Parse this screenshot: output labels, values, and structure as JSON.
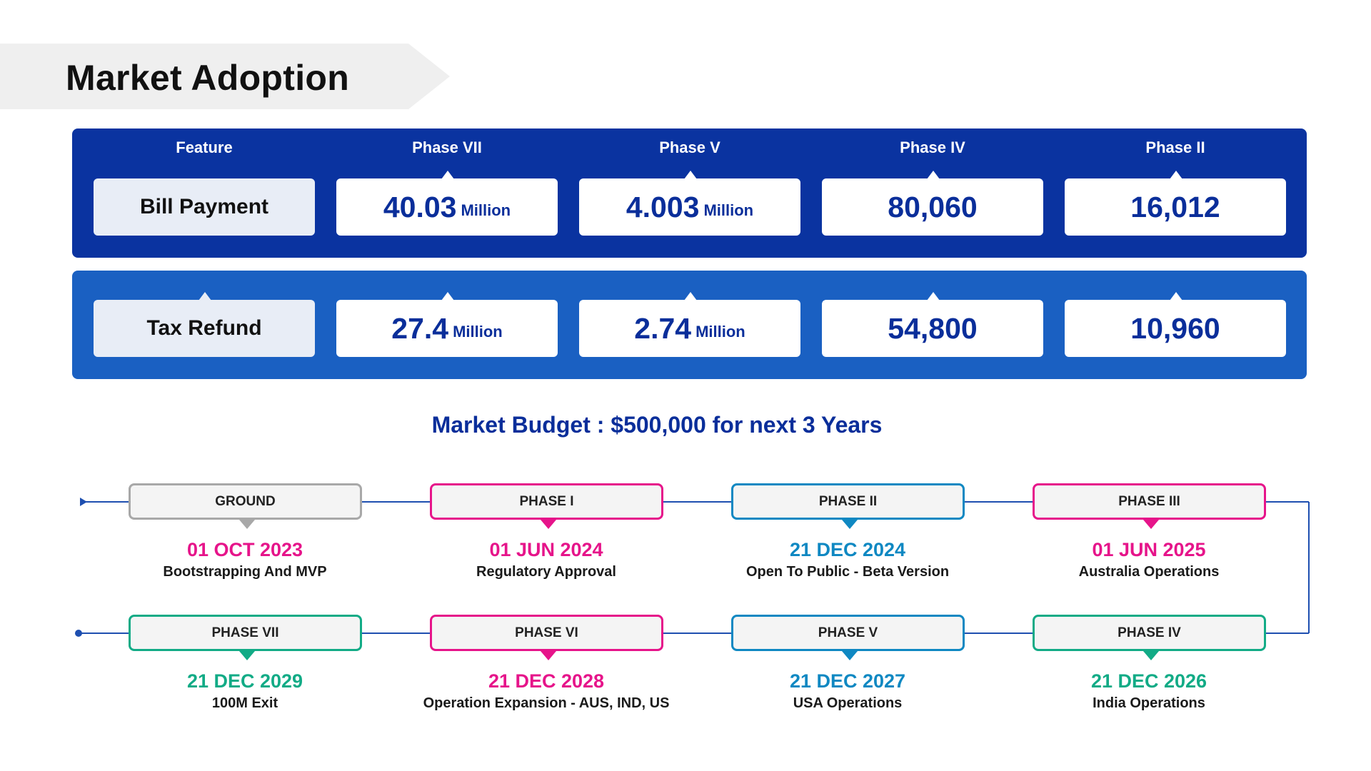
{
  "title": "Market Adoption",
  "colors": {
    "navy": "#0a33a0",
    "blue": "#1a60c2",
    "pink": "#e6148a",
    "teal": "#0f88c2",
    "green": "#12ab86",
    "gray": "#a8a8a8"
  },
  "adoption": {
    "headers": [
      "Feature",
      "Phase VII",
      "Phase V",
      "Phase IV",
      "Phase II"
    ],
    "rows": [
      {
        "feature": "Bill Payment",
        "cells": [
          {
            "num": "40.03",
            "unit": "Million"
          },
          {
            "num": "4.003",
            "unit": "Million"
          },
          {
            "num": "80,060",
            "unit": ""
          },
          {
            "num": "16,012",
            "unit": ""
          }
        ]
      },
      {
        "feature": "Tax Refund",
        "cells": [
          {
            "num": "27.4",
            "unit": "Million"
          },
          {
            "num": "2.74",
            "unit": "Million"
          },
          {
            "num": "54,800",
            "unit": ""
          },
          {
            "num": "10,960",
            "unit": ""
          }
        ]
      }
    ]
  },
  "budget": "Market Budget : $500,000 for next 3 Years",
  "timeline": [
    {
      "label": "GROUND",
      "date": "01 OCT 2023",
      "desc": "Bootstrapping And MVP",
      "color": "#a8a8a8",
      "dateColor": "#e6148a"
    },
    {
      "label": "PHASE I",
      "date": "01 JUN 2024",
      "desc": "Regulatory Approval",
      "color": "#e6148a",
      "dateColor": "#e6148a"
    },
    {
      "label": "PHASE II",
      "date": "21 DEC 2024",
      "desc": "Open To Public - Beta Version",
      "color": "#0f88c2",
      "dateColor": "#0f88c2"
    },
    {
      "label": "PHASE III",
      "date": "01 JUN 2025",
      "desc": "Australia Operations",
      "color": "#e6148a",
      "dateColor": "#e6148a"
    },
    {
      "label": "PHASE VII",
      "date": "21 DEC 2029",
      "desc": "100M Exit",
      "color": "#12ab86",
      "dateColor": "#12ab86"
    },
    {
      "label": "PHASE VI",
      "date": "21 DEC 2028",
      "desc": "Operation Expansion - AUS, IND, US",
      "color": "#e6148a",
      "dateColor": "#e6148a"
    },
    {
      "label": "PHASE V",
      "date": "21 DEC 2027",
      "desc": "USA Operations",
      "color": "#0f88c2",
      "dateColor": "#0f88c2"
    },
    {
      "label": "PHASE IV",
      "date": "21 DEC 2026",
      "desc": "India Operations",
      "color": "#12ab86",
      "dateColor": "#12ab86"
    }
  ]
}
